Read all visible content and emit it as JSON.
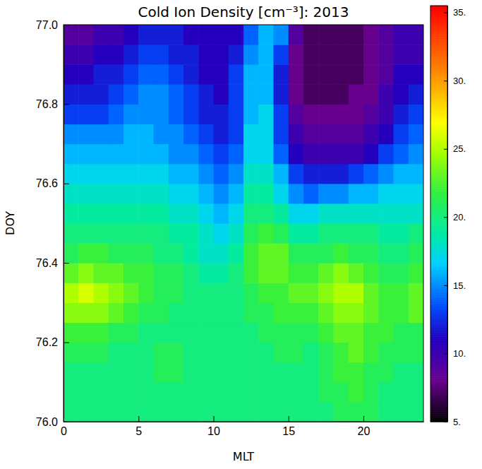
{
  "chart_data": {
    "type": "heatmap",
    "title": "Cold Ion Density [cm⁻³]: 2013",
    "xlabel": "MLT",
    "ylabel": "DOY",
    "xlim": [
      0,
      24
    ],
    "ylim": [
      76,
      77
    ],
    "xticks": [
      0,
      5,
      10,
      15,
      20
    ],
    "yticks": [
      {
        "value": 76,
        "label": "76.0"
      },
      76.2,
      76.4,
      76.6,
      76.8,
      {
        "value": 77,
        "label": "77.0"
      }
    ],
    "x_bins": [
      0,
      1,
      2,
      3,
      4,
      5,
      6,
      7,
      8,
      9,
      10,
      11,
      12,
      13,
      14,
      15,
      16,
      17,
      18,
      19,
      20,
      21,
      22,
      23,
      24
    ],
    "y_bins": [
      76.0,
      76.05,
      76.1,
      76.15,
      76.2,
      76.25,
      76.3,
      76.35,
      76.4,
      76.45,
      76.5,
      76.55,
      76.6,
      76.65,
      76.7,
      76.75,
      76.8,
      76.85,
      76.9,
      76.95,
      77.0
    ],
    "z": [
      [
        20,
        20,
        20,
        20,
        20,
        20,
        20,
        20,
        20,
        20,
        20,
        20,
        20,
        20,
        20,
        20,
        20,
        20,
        21,
        21,
        21,
        20,
        20,
        20
      ],
      [
        20,
        20,
        20,
        20,
        20,
        20,
        20,
        20,
        20,
        20,
        20,
        20,
        20,
        20,
        20,
        20,
        20,
        21,
        21,
        22,
        21,
        20,
        20,
        20
      ],
      [
        20,
        20,
        20,
        20,
        20,
        20,
        21,
        21,
        20,
        20,
        20,
        20,
        20,
        20,
        20,
        20,
        20,
        21,
        22,
        22,
        21,
        21,
        20,
        20
      ],
      [
        21,
        21,
        21,
        20,
        20,
        20,
        21,
        21,
        20,
        20,
        20,
        20,
        20,
        20,
        21,
        21,
        20,
        21,
        22,
        23,
        22,
        21,
        21,
        21
      ],
      [
        22,
        22,
        22,
        21,
        21,
        20,
        20,
        20,
        20,
        20,
        20,
        20,
        20,
        21,
        21,
        21,
        21,
        22,
        23,
        23,
        22,
        22,
        21,
        21
      ],
      [
        24,
        24,
        24,
        23,
        22,
        21,
        21,
        20,
        20,
        20,
        20,
        20,
        21,
        21,
        22,
        22,
        22,
        23,
        24,
        24,
        23,
        22,
        22,
        23
      ],
      [
        25,
        26,
        25,
        24,
        23,
        22,
        21,
        21,
        20,
        20,
        20,
        20,
        21,
        22,
        22,
        23,
        23,
        24,
        25,
        25,
        23,
        22,
        22,
        23
      ],
      [
        23,
        24,
        23,
        23,
        22,
        22,
        21,
        21,
        20,
        19,
        19,
        20,
        22,
        23,
        23,
        22,
        22,
        23,
        24,
        23,
        22,
        21,
        21,
        22
      ],
      [
        21,
        22,
        22,
        21,
        21,
        21,
        20,
        20,
        19,
        18,
        18,
        19,
        22,
        23,
        23,
        21,
        21,
        21,
        22,
        21,
        21,
        20,
        20,
        21
      ],
      [
        20,
        20,
        20,
        20,
        20,
        20,
        20,
        19,
        19,
        18,
        17,
        18,
        21,
        22,
        21,
        19,
        19,
        20,
        20,
        20,
        20,
        19,
        19,
        20
      ],
      [
        19,
        19,
        19,
        19,
        19,
        19,
        19,
        18,
        18,
        17,
        16,
        17,
        20,
        20,
        19,
        17,
        17,
        18,
        18,
        18,
        18,
        18,
        18,
        18
      ],
      [
        18,
        18,
        18,
        18,
        18,
        18,
        18,
        17,
        17,
        16,
        15,
        16,
        19,
        19,
        17,
        15,
        14,
        15,
        15,
        16,
        16,
        17,
        17,
        17
      ],
      [
        17,
        17,
        17,
        17,
        17,
        17,
        17,
        16,
        16,
        15,
        14,
        15,
        18,
        18,
        16,
        13,
        12,
        12,
        12,
        13,
        14,
        15,
        16,
        16
      ],
      [
        16,
        16,
        16,
        16,
        16,
        16,
        16,
        15,
        15,
        14,
        13,
        14,
        17,
        17,
        14,
        11,
        10,
        10,
        10,
        10,
        11,
        13,
        14,
        15
      ],
      [
        15,
        15,
        15,
        15,
        16,
        16,
        15,
        15,
        14,
        13,
        12,
        13,
        17,
        17,
        13,
        10,
        9,
        9,
        9,
        9,
        10,
        11,
        13,
        14
      ],
      [
        13,
        13,
        13,
        14,
        15,
        15,
        15,
        14,
        13,
        12,
        12,
        13,
        16,
        17,
        13,
        9,
        8,
        8,
        8,
        8,
        9,
        10,
        12,
        13
      ],
      [
        12,
        12,
        12,
        13,
        14,
        15,
        15,
        14,
        13,
        12,
        11,
        13,
        16,
        16,
        12,
        8,
        7,
        7,
        7,
        8,
        8,
        10,
        11,
        12
      ],
      [
        11,
        11,
        12,
        12,
        13,
        14,
        14,
        13,
        12,
        11,
        11,
        13,
        16,
        16,
        12,
        8,
        7,
        7,
        7,
        7,
        8,
        9,
        11,
        11
      ],
      [
        10,
        10,
        11,
        11,
        12,
        13,
        13,
        12,
        12,
        11,
        11,
        12,
        15,
        16,
        13,
        8,
        7,
        7,
        7,
        7,
        8,
        9,
        10,
        10
      ],
      [
        9,
        9,
        10,
        10,
        11,
        12,
        12,
        12,
        11,
        11,
        11,
        11,
        14,
        16,
        15,
        9,
        7,
        7,
        7,
        7,
        8,
        9,
        10,
        10
      ]
    ],
    "zlim": [
      5,
      35.5
    ],
    "zticks": [
      {
        "value": 5,
        "label": "5."
      },
      {
        "value": 10,
        "label": "10."
      },
      {
        "value": 15,
        "label": "15."
      },
      {
        "value": 20,
        "label": "20."
      },
      {
        "value": 25,
        "label": "25."
      },
      {
        "value": 30,
        "label": "30."
      },
      {
        "value": 35,
        "label": "35."
      }
    ]
  }
}
